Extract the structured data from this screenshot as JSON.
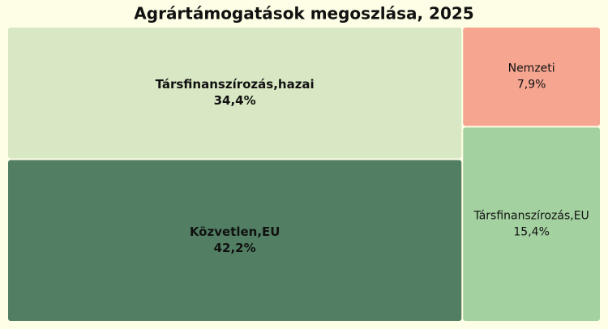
{
  "chart_data": {
    "type": "treemap",
    "title": "Agrártámogatások megoszlása, 2025",
    "categories": [
      "Társfinanszírozás,hazai",
      "Közvetlen,EU",
      "Nemzeti",
      "Társfinanszírozás,EU"
    ],
    "values": [
      34.4,
      42.2,
      7.9,
      15.4
    ],
    "value_labels": [
      "34,4%",
      "42,2%",
      "7,9%",
      "15,4%"
    ],
    "colors": [
      "#d9e8c4",
      "#527f63",
      "#f5a590",
      "#a3d1a0"
    ]
  }
}
